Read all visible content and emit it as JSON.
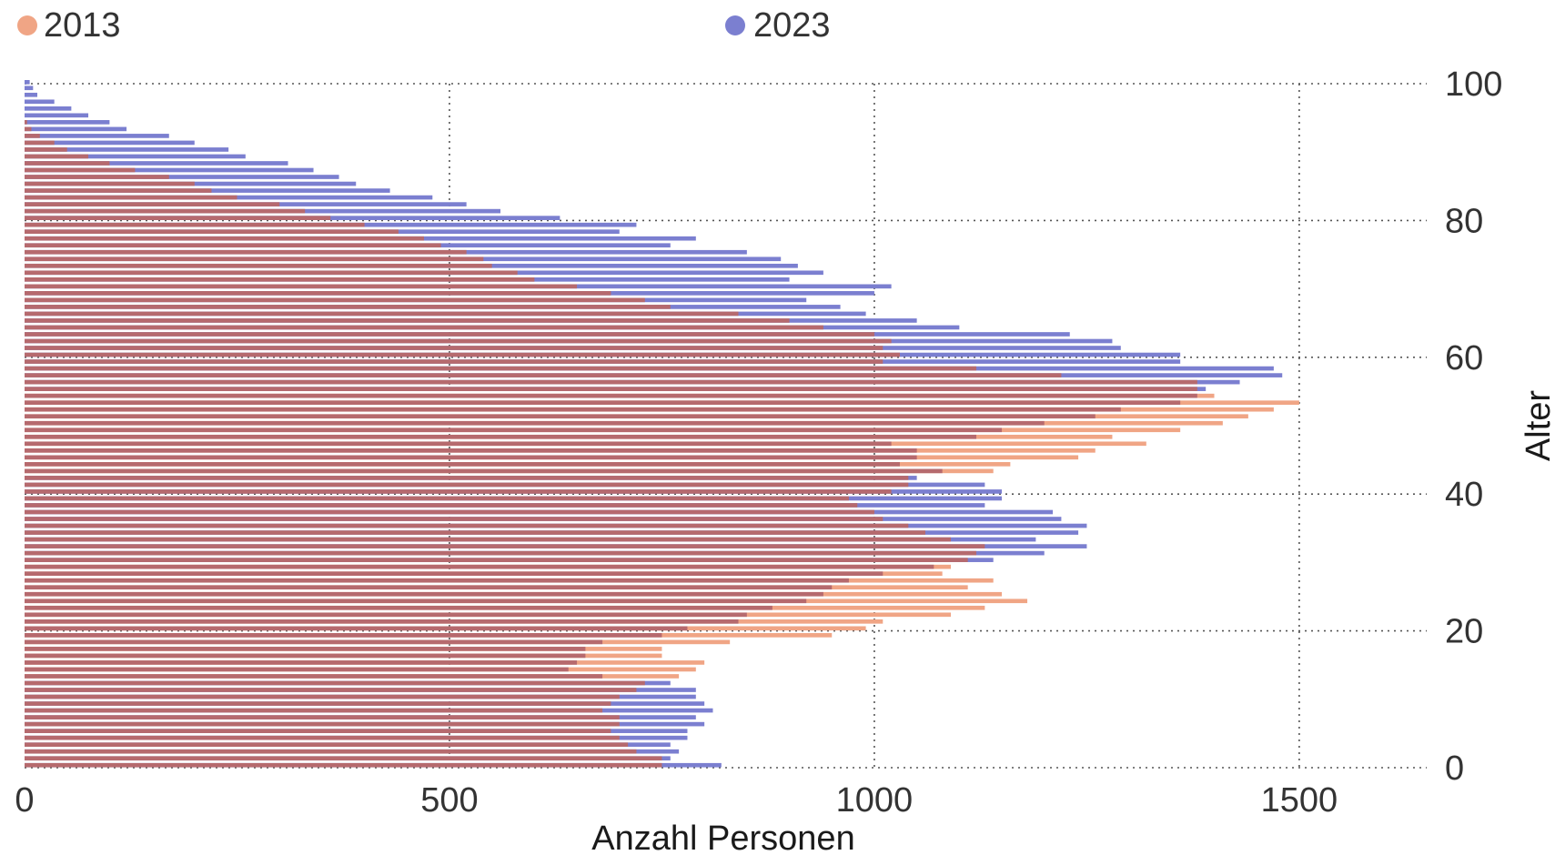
{
  "chart_data": {
    "type": "bar",
    "orientation": "horizontal",
    "overlay": true,
    "xlabel": "Anzahl Personen",
    "ylabel": "Alter",
    "xlim": [
      0,
      1650
    ],
    "ylim": [
      0,
      100
    ],
    "xticks": [
      "0",
      "500",
      "1000",
      "1500"
    ],
    "yticks": [
      "0",
      "20",
      "40",
      "60",
      "80",
      "100"
    ],
    "grid": true,
    "legend_position": "top",
    "ages": [
      0,
      1,
      2,
      3,
      4,
      5,
      6,
      7,
      8,
      9,
      10,
      11,
      12,
      13,
      14,
      15,
      16,
      17,
      18,
      19,
      20,
      21,
      22,
      23,
      24,
      25,
      26,
      27,
      28,
      29,
      30,
      31,
      32,
      33,
      34,
      35,
      36,
      37,
      38,
      39,
      40,
      41,
      42,
      43,
      44,
      45,
      46,
      47,
      48,
      49,
      50,
      51,
      52,
      53,
      54,
      55,
      56,
      57,
      58,
      59,
      60,
      61,
      62,
      63,
      64,
      65,
      66,
      67,
      68,
      69,
      70,
      71,
      72,
      73,
      74,
      75,
      76,
      77,
      78,
      79,
      80,
      81,
      82,
      83,
      84,
      85,
      86,
      87,
      88,
      89,
      90,
      91,
      92,
      93,
      94,
      95,
      96,
      97,
      98,
      99,
      100
    ],
    "series": [
      {
        "name": "2013",
        "color": "#f0a585",
        "values": [
          750,
          750,
          720,
          710,
          700,
          690,
          700,
          700,
          680,
          690,
          700,
          720,
          730,
          770,
          790,
          800,
          750,
          750,
          830,
          950,
          990,
          1010,
          1090,
          1130,
          1180,
          1150,
          1110,
          1140,
          1080,
          1090,
          1110,
          1120,
          1130,
          1090,
          1060,
          1040,
          1010,
          1000,
          980,
          970,
          1020,
          1040,
          1040,
          1140,
          1160,
          1240,
          1260,
          1320,
          1280,
          1360,
          1410,
          1440,
          1470,
          1500,
          1400,
          1380,
          1380,
          1220,
          1120,
          1010,
          1030,
          1010,
          1020,
          1000,
          940,
          900,
          840,
          760,
          730,
          690,
          650,
          600,
          580,
          550,
          540,
          520,
          490,
          470,
          440,
          400,
          360,
          330,
          300,
          250,
          220,
          200,
          170,
          130,
          100,
          75,
          50,
          35,
          18,
          8,
          3,
          0,
          0,
          0,
          0,
          0,
          0
        ]
      },
      {
        "name": "2023",
        "color": "#7b7fd0",
        "values": [
          820,
          760,
          770,
          760,
          780,
          780,
          800,
          790,
          810,
          800,
          790,
          790,
          760,
          680,
          640,
          650,
          660,
          660,
          680,
          750,
          780,
          840,
          850,
          880,
          920,
          940,
          950,
          970,
          1010,
          1070,
          1140,
          1200,
          1250,
          1190,
          1240,
          1250,
          1220,
          1210,
          1130,
          1150,
          1150,
          1130,
          1050,
          1080,
          1030,
          1050,
          1050,
          1020,
          1120,
          1150,
          1200,
          1260,
          1290,
          1360,
          1380,
          1390,
          1430,
          1480,
          1470,
          1360,
          1360,
          1290,
          1280,
          1230,
          1100,
          1050,
          990,
          960,
          920,
          1000,
          1020,
          900,
          940,
          910,
          890,
          850,
          760,
          790,
          700,
          720,
          630,
          560,
          520,
          480,
          430,
          390,
          370,
          340,
          310,
          260,
          240,
          200,
          170,
          120,
          100,
          75,
          55,
          35,
          15,
          10,
          6
        ]
      }
    ]
  },
  "legend": {
    "items": [
      {
        "label": "2013",
        "color": "#f0a585"
      },
      {
        "label": "2023",
        "color": "#7b7fd0"
      }
    ]
  },
  "colors": {
    "overlap": "#b66a6e",
    "grid": "#555555",
    "text": "#333333"
  }
}
